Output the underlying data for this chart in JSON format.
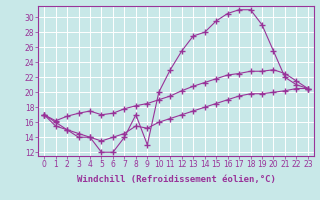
{
  "xlabel": "Windchill (Refroidissement éolien,°C)",
  "x": [
    0,
    1,
    2,
    3,
    4,
    5,
    6,
    7,
    8,
    9,
    10,
    11,
    12,
    13,
    14,
    15,
    16,
    17,
    18,
    19,
    20,
    21,
    22,
    23
  ],
  "line1": [
    17.0,
    16.0,
    15.0,
    14.0,
    14.0,
    12.0,
    12.0,
    14.0,
    17.0,
    13.0,
    20.0,
    23.0,
    25.5,
    27.5,
    28.0,
    29.5,
    30.5,
    31.0,
    31.0,
    29.0,
    25.5,
    22.0,
    21.0,
    20.5
  ],
  "line2": [
    17.0,
    16.2,
    16.8,
    17.2,
    17.5,
    17.0,
    17.2,
    17.8,
    18.2,
    18.5,
    19.0,
    19.5,
    20.2,
    20.8,
    21.3,
    21.8,
    22.3,
    22.5,
    22.8,
    22.8,
    23.0,
    22.5,
    21.5,
    20.5
  ],
  "line3": [
    17.0,
    15.5,
    15.0,
    14.5,
    14.0,
    13.5,
    14.0,
    14.5,
    15.5,
    15.2,
    16.0,
    16.5,
    17.0,
    17.5,
    18.0,
    18.5,
    19.0,
    19.5,
    19.8,
    19.8,
    20.0,
    20.2,
    20.5,
    20.5
  ],
  "color": "#993399",
  "bg_color": "#c8e8e8",
  "grid_color": "#ffffff",
  "ylim": [
    11.5,
    31.5
  ],
  "xlim": [
    -0.5,
    23.5
  ],
  "yticks": [
    12,
    14,
    16,
    18,
    20,
    22,
    24,
    26,
    28,
    30
  ],
  "xticks": [
    0,
    1,
    2,
    3,
    4,
    5,
    6,
    7,
    8,
    9,
    10,
    11,
    12,
    13,
    14,
    15,
    16,
    17,
    18,
    19,
    20,
    21,
    22,
    23
  ],
  "xtick_labels": [
    "0",
    "1",
    "2",
    "3",
    "4",
    "5",
    "6",
    "7",
    "8",
    "9",
    "10",
    "11",
    "12",
    "13",
    "14",
    "15",
    "16",
    "17",
    "18",
    "19",
    "20",
    "21",
    "22",
    "23"
  ],
  "marker": "+",
  "markersize": 4,
  "linewidth": 0.8,
  "tick_fontsize": 5.5,
  "label_fontsize": 6.5
}
